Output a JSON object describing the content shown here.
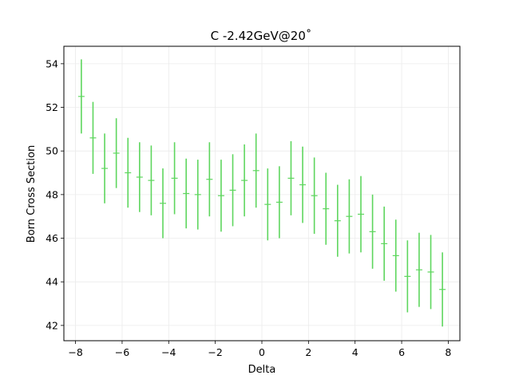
{
  "chart_data": {
    "type": "scatter",
    "title": "C -2.42GeV@20˚",
    "xlabel": "Delta",
    "ylabel": "Born Cross Section",
    "xlim": [
      -8.5,
      8.5
    ],
    "ylim": [
      41.3,
      54.8
    ],
    "xticks": [
      -8,
      -6,
      -4,
      -2,
      0,
      2,
      4,
      6,
      8
    ],
    "yticks": [
      42,
      44,
      46,
      48,
      50,
      52,
      54
    ],
    "grid": true,
    "color": "#5ed65e",
    "series": [
      {
        "points": [
          {
            "x": -7.75,
            "y": 52.5,
            "err": 1.7
          },
          {
            "x": -7.25,
            "y": 50.6,
            "err": 1.65
          },
          {
            "x": -6.75,
            "y": 49.2,
            "err": 1.6
          },
          {
            "x": -6.25,
            "y": 49.9,
            "err": 1.6
          },
          {
            "x": -5.75,
            "y": 49.0,
            "err": 1.6
          },
          {
            "x": -5.25,
            "y": 48.8,
            "err": 1.6
          },
          {
            "x": -4.75,
            "y": 48.65,
            "err": 1.6
          },
          {
            "x": -4.25,
            "y": 47.6,
            "err": 1.6
          },
          {
            "x": -3.75,
            "y": 48.75,
            "err": 1.65
          },
          {
            "x": -3.25,
            "y": 48.05,
            "err": 1.6
          },
          {
            "x": -2.75,
            "y": 48.0,
            "err": 1.6
          },
          {
            "x": -2.25,
            "y": 48.7,
            "err": 1.7
          },
          {
            "x": -1.75,
            "y": 47.95,
            "err": 1.65
          },
          {
            "x": -1.25,
            "y": 48.2,
            "err": 1.65
          },
          {
            "x": -0.75,
            "y": 48.65,
            "err": 1.65
          },
          {
            "x": -0.25,
            "y": 49.1,
            "err": 1.7
          },
          {
            "x": 0.25,
            "y": 47.55,
            "err": 1.65
          },
          {
            "x": 0.75,
            "y": 47.65,
            "err": 1.65
          },
          {
            "x": 1.25,
            "y": 48.75,
            "err": 1.7
          },
          {
            "x": 1.75,
            "y": 48.45,
            "err": 1.75
          },
          {
            "x": 2.25,
            "y": 47.95,
            "err": 1.75
          },
          {
            "x": 2.75,
            "y": 47.35,
            "err": 1.65
          },
          {
            "x": 3.25,
            "y": 46.8,
            "err": 1.65
          },
          {
            "x": 3.75,
            "y": 47.0,
            "err": 1.7
          },
          {
            "x": 4.25,
            "y": 47.1,
            "err": 1.75
          },
          {
            "x": 4.75,
            "y": 46.3,
            "err": 1.7
          },
          {
            "x": 5.25,
            "y": 45.75,
            "err": 1.7
          },
          {
            "x": 5.75,
            "y": 45.2,
            "err": 1.65
          },
          {
            "x": 6.25,
            "y": 44.25,
            "err": 1.65
          },
          {
            "x": 6.75,
            "y": 44.55,
            "err": 1.7
          },
          {
            "x": 7.25,
            "y": 44.45,
            "err": 1.7
          },
          {
            "x": 7.75,
            "y": 43.65,
            "err": 1.7
          }
        ]
      }
    ]
  }
}
